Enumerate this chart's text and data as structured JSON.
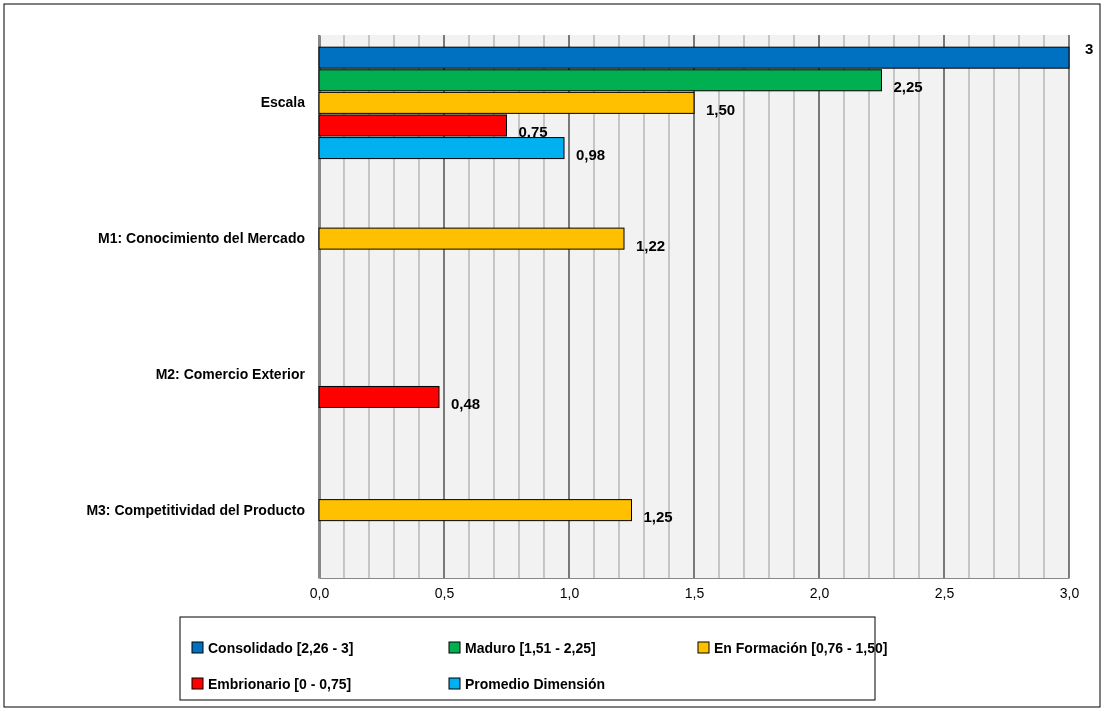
{
  "chart_data": {
    "type": "bar",
    "orientation": "horizontal",
    "categories": [
      "Escala",
      "M1: Conocimiento del Mercado",
      "M2: Comercio Exterior",
      "M3: Competitividad del Producto"
    ],
    "series": [
      {
        "name": "Consolidado [2,26 - 3]",
        "color": "#0070c0",
        "values": [
          3,
          null,
          null,
          null
        ],
        "value_labels": [
          "3",
          null,
          null,
          null
        ]
      },
      {
        "name": "Maduro [1,51 - 2,25]",
        "color": "#00b050",
        "values": [
          2.25,
          null,
          null,
          null
        ],
        "value_labels": [
          "2,25",
          null,
          null,
          null
        ]
      },
      {
        "name": "En Formación [0,76 - 1,50]",
        "color": "#ffc000",
        "values": [
          1.5,
          1.22,
          null,
          1.25
        ],
        "value_labels": [
          "1,50",
          "1,22",
          null,
          "1,25"
        ]
      },
      {
        "name": "Embrionario [0 - 0,75]",
        "color": "#ff0000",
        "values": [
          0.75,
          null,
          0.48,
          null
        ],
        "value_labels": [
          "0,75",
          null,
          "0,48",
          null
        ]
      },
      {
        "name": "Promedio Dimensión",
        "color": "#00b0f0",
        "values": [
          0.98,
          null,
          null,
          null
        ],
        "value_labels": [
          "0,98",
          null,
          null,
          null
        ]
      }
    ],
    "xlim": [
      0,
      3
    ],
    "xticks": [
      {
        "value": 0,
        "label": "0,0"
      },
      {
        "value": 0.1,
        "label": null
      },
      {
        "value": 0.2,
        "label": null
      },
      {
        "value": 0.3,
        "label": null
      },
      {
        "value": 0.4,
        "label": null
      },
      {
        "value": 0.5,
        "label": "0,5"
      },
      {
        "value": 0.6,
        "label": null
      },
      {
        "value": 0.7,
        "label": null
      },
      {
        "value": 0.8,
        "label": null
      },
      {
        "value": 0.9,
        "label": null
      },
      {
        "value": 1,
        "label": "1,0"
      },
      {
        "value": 1.1,
        "label": null
      },
      {
        "value": 1.2,
        "label": null
      },
      {
        "value": 1.3,
        "label": null
      },
      {
        "value": 1.4,
        "label": null
      },
      {
        "value": 1.5,
        "label": "1,5"
      },
      {
        "value": 1.6,
        "label": null
      },
      {
        "value": 1.7,
        "label": null
      },
      {
        "value": 1.8,
        "label": null
      },
      {
        "value": 1.9,
        "label": null
      },
      {
        "value": 2,
        "label": "2,0"
      },
      {
        "value": 2.1,
        "label": null
      },
      {
        "value": 2.2,
        "label": null
      },
      {
        "value": 2.3,
        "label": null
      },
      {
        "value": 2.4,
        "label": null
      },
      {
        "value": 2.5,
        "label": "2,5"
      },
      {
        "value": 2.6,
        "label": null
      },
      {
        "value": 2.7,
        "label": null
      },
      {
        "value": 2.8,
        "label": null
      },
      {
        "value": 2.9,
        "label": null
      },
      {
        "value": 3,
        "label": "3,0"
      }
    ],
    "grid": "x",
    "legend": "bottom"
  }
}
